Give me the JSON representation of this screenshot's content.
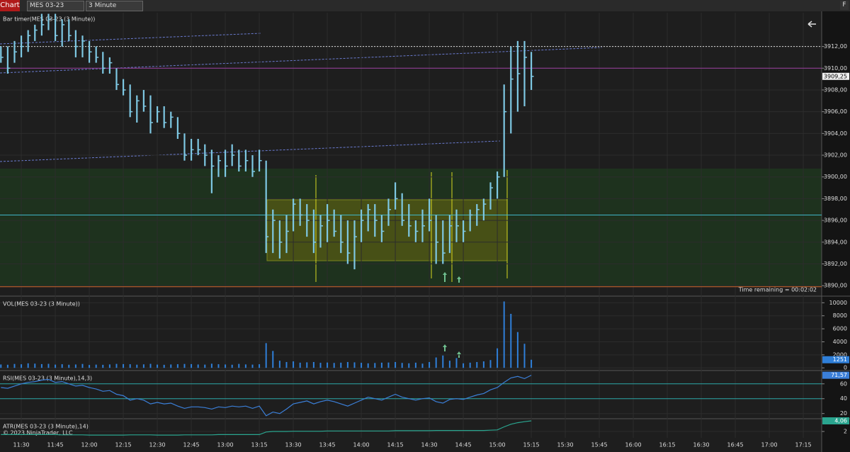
{
  "toolbar": {
    "title": "Chart",
    "instrument": "MES 03-23",
    "interval": "3 Minute",
    "f": "F"
  },
  "chart_data": [
    {
      "type": "ohlc",
      "title": "Bar timer(MES 03-23 (3 Minute))",
      "note": "Time remaining = 00:02:02",
      "color": "#7ec8e3",
      "xlim": [
        680.6,
        1043.1
      ],
      "xticks": [
        {
          "value": 690,
          "label": "11:30"
        },
        {
          "value": 705,
          "label": "11:45"
        },
        {
          "value": 720,
          "label": "12:00"
        },
        {
          "value": 735,
          "label": "12:15"
        },
        {
          "value": 750,
          "label": "12:30"
        },
        {
          "value": 765,
          "label": "12:45"
        },
        {
          "value": 780,
          "label": "13:00"
        },
        {
          "value": 795,
          "label": "13:15"
        },
        {
          "value": 810,
          "label": "13:30"
        },
        {
          "value": 825,
          "label": "13:45"
        },
        {
          "value": 840,
          "label": "14:00"
        },
        {
          "value": 855,
          "label": "14:15"
        },
        {
          "value": 870,
          "label": "14:30"
        },
        {
          "value": 885,
          "label": "14:45"
        },
        {
          "value": 900,
          "label": "15:00"
        },
        {
          "value": 915,
          "label": "15:15"
        },
        {
          "value": 930,
          "label": "15:30"
        },
        {
          "value": 945,
          "label": "15:45"
        },
        {
          "value": 960,
          "label": "16:00"
        },
        {
          "value": 975,
          "label": "16:15"
        },
        {
          "value": 990,
          "label": "16:30"
        },
        {
          "value": 1005,
          "label": "16:45"
        },
        {
          "value": 1020,
          "label": "17:00"
        },
        {
          "value": 1035,
          "label": "17:15"
        }
      ],
      "x": [
        681,
        684,
        687,
        690,
        693,
        696,
        699,
        702,
        705,
        708,
        711,
        714,
        717,
        720,
        723,
        726,
        729,
        732,
        735,
        738,
        741,
        744,
        747,
        750,
        753,
        756,
        759,
        762,
        765,
        768,
        771,
        774,
        777,
        780,
        783,
        786,
        789,
        792,
        795,
        798,
        801,
        804,
        807,
        810,
        813,
        816,
        819,
        822,
        825,
        828,
        831,
        834,
        837,
        840,
        843,
        846,
        849,
        852,
        855,
        858,
        861,
        864,
        867,
        870,
        873,
        876,
        879,
        882,
        885,
        888,
        891,
        894,
        897,
        900,
        903,
        906,
        909,
        912,
        915
      ],
      "high": [
        3912,
        3912,
        3912.5,
        3913,
        3913.5,
        3914,
        3915,
        3915,
        3915,
        3914.5,
        3914.5,
        3913.5,
        3913,
        3912.5,
        3912,
        3911.5,
        3911,
        3910,
        3909,
        3908.5,
        3907.5,
        3908,
        3907.5,
        3906.5,
        3906.5,
        3906,
        3905.5,
        3904,
        3903.5,
        3903.5,
        3903,
        3902.5,
        3902,
        3902.5,
        3903,
        3902.5,
        3902.5,
        3902,
        3902.5,
        3901.5,
        3897,
        3896,
        3896.5,
        3898,
        3898,
        3897.5,
        3897,
        3896.5,
        3897.5,
        3897,
        3896.5,
        3896,
        3896,
        3897,
        3897.5,
        3897.5,
        3896.5,
        3898,
        3899.5,
        3898.5,
        3897.5,
        3896,
        3897,
        3898,
        3896.5,
        3896,
        3896.5,
        3897,
        3896,
        3897,
        3897.5,
        3898,
        3899.5,
        3900.5,
        3908.5,
        3912,
        3912.5,
        3912.5,
        3911.5
      ],
      "low": [
        3910.5,
        3909.5,
        3910.5,
        3911,
        3911.5,
        3912.5,
        3913,
        3913.5,
        3912.5,
        3912,
        3912.5,
        3911,
        3911,
        3910.5,
        3910.5,
        3909.5,
        3909.5,
        3908,
        3907.5,
        3905.5,
        3905,
        3906,
        3904,
        3905,
        3904.5,
        3904.5,
        3903.5,
        3901.5,
        3901.5,
        3902,
        3901,
        3898.5,
        3900,
        3900,
        3901,
        3900.5,
        3900.5,
        3900,
        3900.5,
        3893,
        3893,
        3892.5,
        3893,
        3895,
        3895.5,
        3894.5,
        3893,
        3893.5,
        3894,
        3894.5,
        3893,
        3892,
        3891.5,
        3894,
        3895,
        3894.5,
        3894,
        3895.5,
        3897,
        3895.5,
        3894.5,
        3894,
        3894,
        3895,
        3892,
        3892,
        3893,
        3894,
        3894,
        3895,
        3895.5,
        3896,
        3897,
        3898,
        3900,
        3904,
        3906,
        3906.5,
        3908
      ],
      "close": [
        3911,
        3910,
        3911.5,
        3912,
        3913,
        3913.5,
        3914,
        3914.5,
        3913,
        3914,
        3913,
        3912,
        3912.5,
        3911.5,
        3911,
        3910,
        3910.5,
        3908.5,
        3908,
        3906,
        3907,
        3906.5,
        3905,
        3906,
        3905,
        3905.5,
        3904,
        3902,
        3902.5,
        3902.5,
        3902,
        3901,
        3901.5,
        3901,
        3902,
        3901,
        3901.5,
        3900.5,
        3901.5,
        3894.5,
        3896,
        3894,
        3895,
        3897.5,
        3896.5,
        3896,
        3894,
        3895.5,
        3896,
        3895,
        3894,
        3893,
        3894.5,
        3896,
        3897,
        3896,
        3895,
        3897,
        3898,
        3896,
        3895.5,
        3895,
        3895.5,
        3896,
        3894,
        3893,
        3895.5,
        3895.5,
        3895,
        3896.5,
        3897,
        3897.5,
        3899,
        3900,
        3906,
        3909,
        3909.5,
        3911,
        3909.25
      ],
      "ylim": [
        3889.1,
        3915.1
      ],
      "yticks": [
        {
          "value": 3890,
          "label": "3890,00"
        },
        {
          "value": 3892,
          "label": "3892,00"
        },
        {
          "value": 3894,
          "label": "3894,00"
        },
        {
          "value": 3896,
          "label": "3896,00"
        },
        {
          "value": 3898,
          "label": "3898,00"
        },
        {
          "value": 3900,
          "label": "3900,00"
        },
        {
          "value": 3902,
          "label": "3902,00"
        },
        {
          "value": 3904,
          "label": "3904,00"
        },
        {
          "value": 3906,
          "label": "3906,00"
        },
        {
          "value": 3908,
          "label": "3908,00"
        },
        {
          "value": 3910,
          "label": "3910,00"
        },
        {
          "value": 3912,
          "label": "3912,00"
        }
      ],
      "levels": [
        {
          "value": 3912,
          "color": "#dddddd"
        },
        {
          "value": 3910,
          "color": "#9b3fa0"
        },
        {
          "value": 3896.5,
          "color": "#3fb6c8"
        },
        {
          "value": 3889.9,
          "color": "#d0622a"
        }
      ],
      "last_label": {
        "value": 3909.25,
        "label": "3909,25"
      }
    },
    {
      "type": "bar",
      "title": "VOL(MES 03-23 (3 Minute))",
      "color": "#2f7fd8",
      "values": [
        520,
        480,
        600,
        550,
        700,
        650,
        580,
        620,
        500,
        560,
        480,
        520,
        600,
        450,
        500,
        470,
        530,
        610,
        580,
        560,
        490,
        540,
        620,
        500,
        470,
        520,
        560,
        600,
        580,
        520,
        500,
        640,
        560,
        520,
        480,
        610,
        530,
        500,
        560,
        3800,
        2600,
        1100,
        900,
        1000,
        800,
        850,
        900,
        780,
        820,
        760,
        800,
        900,
        850,
        780,
        700,
        750,
        800,
        820,
        900,
        760,
        700,
        800,
        650,
        900,
        1600,
        1900,
        1100,
        1500,
        700,
        800,
        900,
        1000,
        1200,
        3000,
        10200,
        8300,
        5500,
        3700,
        1251
      ],
      "ylim": [
        -300,
        10800
      ],
      "yticks": [
        0,
        2000,
        4000,
        6000,
        8000,
        10000
      ]
    },
    {
      "type": "line",
      "title": "RSI(MES 03-23 (3 Minute),14,3)",
      "color": "#3b7fd8",
      "values": [
        55,
        54,
        57,
        60,
        62,
        63,
        65,
        66,
        62,
        63,
        60,
        57,
        58,
        55,
        53,
        50,
        51,
        46,
        44,
        38,
        40,
        38,
        33,
        35,
        33,
        34,
        30,
        27,
        29,
        29,
        28,
        26,
        29,
        28,
        30,
        29,
        30,
        27,
        30,
        17,
        22,
        20,
        26,
        33,
        35,
        37,
        33,
        36,
        38,
        36,
        33,
        30,
        34,
        38,
        42,
        40,
        38,
        42,
        46,
        42,
        40,
        38,
        40,
        41,
        36,
        34,
        39,
        40,
        39,
        42,
        45,
        47,
        52,
        55,
        62,
        68,
        70,
        67,
        71.57
      ],
      "ylim": [
        14,
        76
      ],
      "yticks": [
        20,
        40,
        60
      ],
      "levels": [
        60,
        40
      ],
      "level_color": "#2aa5a5",
      "last_label": {
        "value": 71.57,
        "label": "71,57"
      }
    },
    {
      "type": "line",
      "title": "ATR(MES 03-23 (3 Minute),14)",
      "subtitle": "© 2023 NinjaTrader, LLC",
      "color": "#2aa58f",
      "values": [
        1.4,
        1.4,
        1.4,
        1.4,
        1.4,
        1.4,
        1.4,
        1.4,
        1.4,
        1.35,
        1.35,
        1.35,
        1.35,
        1.3,
        1.3,
        1.3,
        1.3,
        1.3,
        1.3,
        1.35,
        1.35,
        1.35,
        1.35,
        1.3,
        1.3,
        1.3,
        1.3,
        1.35,
        1.35,
        1.35,
        1.35,
        1.35,
        1.4,
        1.4,
        1.4,
        1.4,
        1.4,
        1.4,
        1.4,
        1.9,
        2.0,
        2.0,
        2.0,
        2.05,
        2.05,
        2.05,
        2.05,
        2.05,
        2.1,
        2.1,
        2.1,
        2.1,
        2.1,
        2.1,
        2.1,
        2.1,
        2.1,
        2.1,
        2.15,
        2.15,
        2.15,
        2.15,
        2.15,
        2.15,
        2.2,
        2.2,
        2.2,
        2.2,
        2.2,
        2.2,
        2.2,
        2.2,
        2.25,
        2.3,
        2.9,
        3.4,
        3.7,
        3.9,
        4.06
      ],
      "ylim": [
        0.77,
        4.2
      ],
      "yticks": [
        2
      ],
      "last_label": {
        "value": 4.06,
        "label": "4,06"
      }
    }
  ]
}
